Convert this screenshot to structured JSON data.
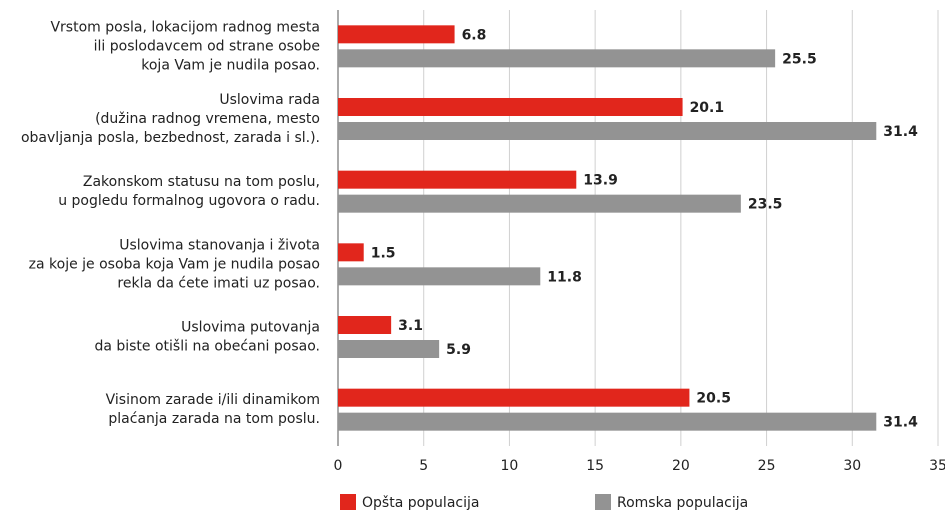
{
  "chart_data": {
    "type": "hbar",
    "categories": [
      [
        "Vrstom posla, lokacijom radnog mesta",
        "ili poslodavcem od strane osobe",
        "koja Vam je nudila posao."
      ],
      [
        "Uslovima rada",
        "(dužina radnog vremena, mesto",
        "obavljanja posla, bezbednost, zarada i sl.)."
      ],
      [
        "Zakonskom statusu na tom poslu,",
        "u pogledu formalnog ugovora o radu."
      ],
      [
        "Uslovima stanovanja i života",
        "za koje je osoba koja Vam je nudila posao",
        "rekla da ćete imati uz posao."
      ],
      [
        "Uslovima putovanja",
        "da biste otišli na obećani posao."
      ],
      [
        "Visinom zarade i/ili dinamikom",
        "plaćanja zarada na tom poslu."
      ]
    ],
    "series": [
      {
        "name": "Opšta populacija",
        "color": "#e1261c",
        "values": [
          6.8,
          20.1,
          13.9,
          1.5,
          3.1,
          20.5
        ]
      },
      {
        "name": "Romska populacija",
        "color": "#939393",
        "values": [
          25.5,
          31.4,
          23.5,
          11.8,
          5.9,
          31.4
        ]
      }
    ],
    "xlim": [
      0,
      35
    ],
    "xticks": [
      0,
      5,
      10,
      15,
      20,
      25,
      30,
      35
    ],
    "grid": true
  }
}
